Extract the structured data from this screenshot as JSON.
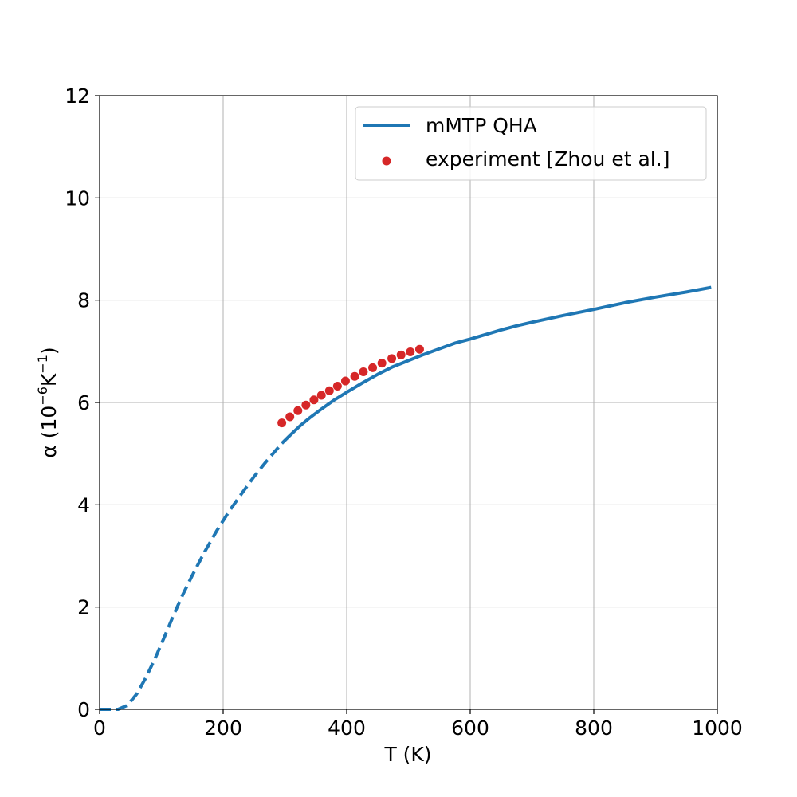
{
  "chart_data": {
    "type": "line",
    "title": "",
    "xlabel": "T (K)",
    "ylabel_prefix": "α (10",
    "ylabel_exp1": "−6",
    "ylabel_mid": "K",
    "ylabel_exp2": "−1",
    "ylabel_suffix": ")",
    "xlim": [
      0,
      1000
    ],
    "ylim": [
      0,
      12
    ],
    "xticks": [
      0,
      200,
      400,
      600,
      800,
      1000
    ],
    "yticks": [
      0,
      2,
      4,
      6,
      8,
      10,
      12
    ],
    "grid": true,
    "legend_position": "top-right",
    "colors": {
      "model": "#1f77b4",
      "experiment": "#d62728"
    },
    "series": [
      {
        "name": "mMTP QHA",
        "style": "line",
        "dashed_segment_until_x": 295,
        "x": [
          0,
          15,
          30,
          45,
          60,
          75,
          90,
          105,
          120,
          135,
          150,
          170,
          190,
          210,
          230,
          250,
          270,
          295,
          310,
          325,
          340,
          360,
          380,
          400,
          425,
          450,
          475,
          500,
          525,
          550,
          575,
          600,
          625,
          650,
          675,
          700,
          750,
          800,
          850,
          900,
          950,
          990
        ],
        "y": [
          0,
          0,
          0,
          0.08,
          0.3,
          0.62,
          1.0,
          1.42,
          1.85,
          2.25,
          2.62,
          3.08,
          3.5,
          3.88,
          4.22,
          4.55,
          4.85,
          5.2,
          5.38,
          5.55,
          5.7,
          5.88,
          6.05,
          6.2,
          6.38,
          6.55,
          6.7,
          6.82,
          6.94,
          7.05,
          7.16,
          7.24,
          7.33,
          7.42,
          7.5,
          7.57,
          7.7,
          7.82,
          7.95,
          8.06,
          8.16,
          8.25
        ]
      },
      {
        "name": "experiment [Zhou et al.]",
        "style": "scatter",
        "x": [
          295,
          308,
          321,
          334,
          347,
          359,
          372,
          385,
          398,
          413,
          427,
          442,
          457,
          473,
          488,
          503,
          518
        ],
        "y": [
          5.6,
          5.72,
          5.84,
          5.95,
          6.05,
          6.14,
          6.23,
          6.32,
          6.42,
          6.51,
          6.6,
          6.68,
          6.77,
          6.86,
          6.93,
          6.99,
          7.04
        ]
      }
    ]
  }
}
